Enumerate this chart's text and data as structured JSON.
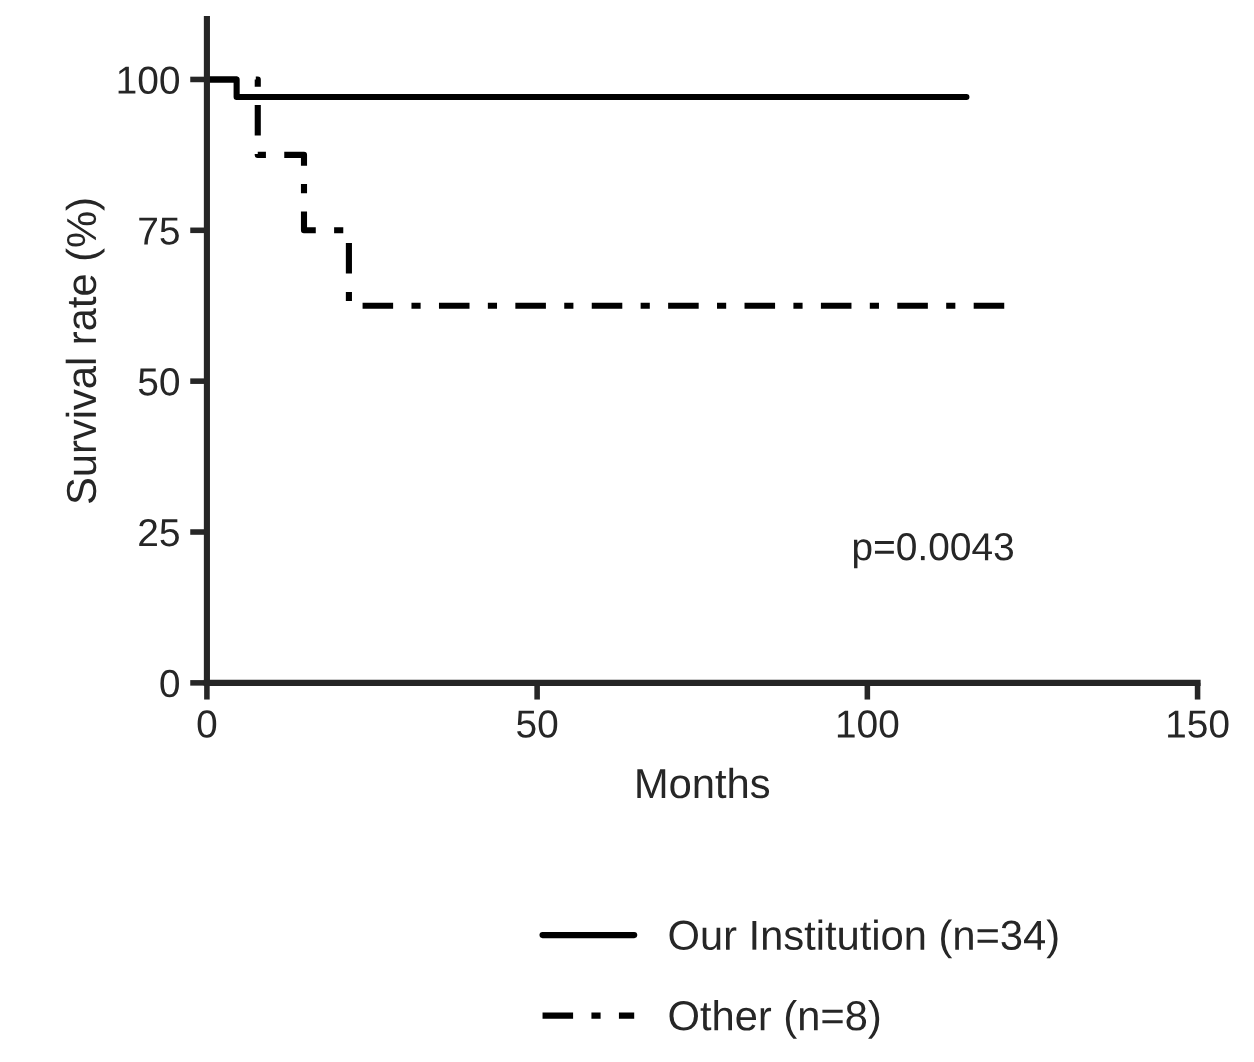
{
  "chart_data": {
    "type": "step",
    "xlabel": "Months",
    "ylabel": "Survival rate (%)",
    "xlim": [
      0,
      150
    ],
    "xticks": [
      0,
      50,
      100,
      150
    ],
    "ylim": [
      0,
      110
    ],
    "yticks": [
      0,
      25,
      50,
      75,
      100
    ],
    "grid": false,
    "legend": "bottom",
    "marker": "none",
    "annotations": [
      "p=0.0043"
    ],
    "series": [
      {
        "name": "Our Institution (n=34)",
        "color": "#000000",
        "line_style": "solid",
        "x": [
          0,
          4.5,
          115
        ],
        "values": [
          100,
          97.1,
          97.1
        ]
      },
      {
        "name": "Other (n=8)",
        "color": "#000000",
        "line_style": "dashed",
        "x": [
          0,
          7.7,
          14.7,
          21.5,
          121
        ],
        "values": [
          100,
          87.5,
          75,
          62.5,
          62.5
        ]
      }
    ]
  }
}
